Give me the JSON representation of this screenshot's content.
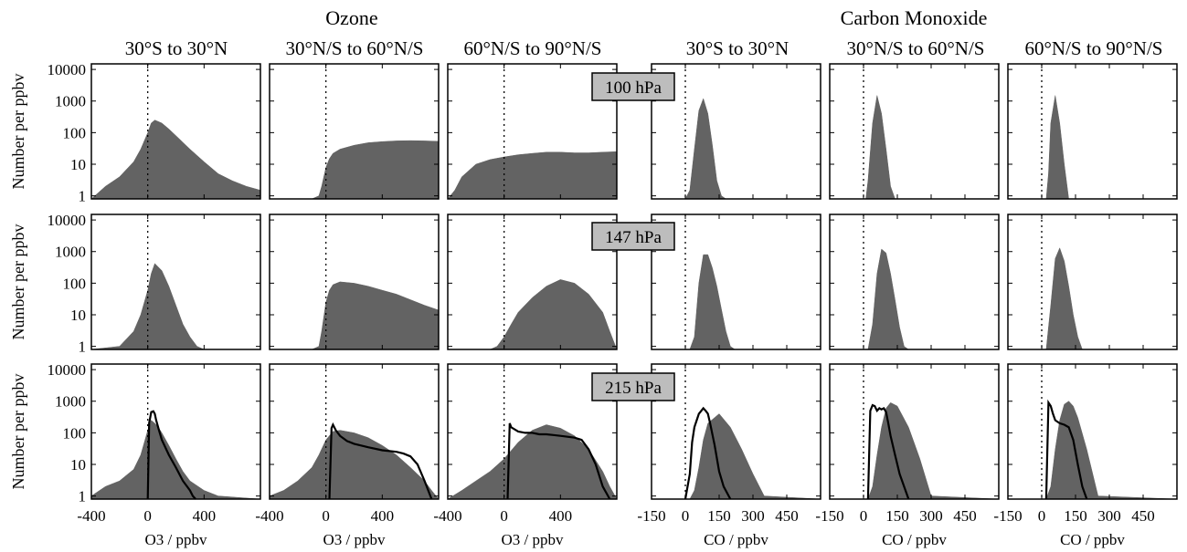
{
  "groups": [
    {
      "title": "Ozone",
      "columns": [
        "30°S to 30°N",
        "30°N/S to 60°N/S",
        "60°N/S to 90°N/S"
      ],
      "xlabel": "O3 / ppbv"
    },
    {
      "title": "Carbon Monoxide",
      "columns": [
        "30°S to 30°N",
        "30°N/S to 60°N/S",
        "60°N/S to 90°N/S"
      ],
      "xlabel": "CO / ppbv"
    }
  ],
  "pressure_levels": [
    "100 hPa",
    "147 hPa",
    "215 hPa"
  ],
  "ylabel": "Number per ppbv",
  "colors": {
    "histogram_fill": "#636363",
    "reference_line": "#000000",
    "zero_line": "#000000"
  },
  "chart_data": {
    "type": "area",
    "title": "",
    "yscale": "log",
    "ylim": [
      0.8,
      15000
    ],
    "yticks": [
      1,
      10,
      100,
      1000,
      10000
    ],
    "ytick_labels": [
      "1",
      "10",
      "100",
      "1000",
      "10000"
    ],
    "grid": false,
    "panels": [
      {
        "species": "Ozone",
        "region": "30°S to 30°N",
        "level": "100 hPa",
        "xlim": [
          -400,
          800
        ],
        "x": [
          -400,
          -300,
          -200,
          -100,
          -50,
          0,
          25,
          50,
          100,
          150,
          200,
          300,
          400,
          500,
          600,
          700,
          800
        ],
        "values": [
          0.8,
          2,
          4,
          12,
          30,
          100,
          200,
          250,
          200,
          130,
          80,
          30,
          12,
          5,
          3,
          2,
          1.5
        ]
      },
      {
        "species": "Ozone",
        "region": "30°S to 30°N",
        "level": "147 hPa",
        "xlim": [
          -400,
          800
        ],
        "x": [
          -400,
          -200,
          -100,
          -50,
          0,
          25,
          50,
          100,
          150,
          200,
          250,
          300,
          350,
          400,
          500,
          800
        ],
        "values": [
          0.8,
          1,
          3,
          10,
          60,
          200,
          420,
          250,
          80,
          20,
          5,
          2,
          1,
          0.8,
          0.8,
          0.8
        ]
      },
      {
        "species": "Ozone",
        "region": "30°S to 30°N",
        "level": "215 hPa",
        "xlim": [
          -400,
          800
        ],
        "x": [
          -400,
          -300,
          -200,
          -100,
          -50,
          0,
          25,
          50,
          75,
          100,
          150,
          200,
          250,
          300,
          400,
          500,
          800
        ],
        "values": [
          1,
          2,
          3,
          7,
          20,
          120,
          250,
          200,
          150,
          100,
          40,
          15,
          6,
          3,
          1.5,
          1,
          0.8
        ]
      },
      {
        "species": "Ozone",
        "region": "30°N/S to 60°N/S",
        "level": "100 hPa",
        "xlim": [
          -400,
          800
        ],
        "x": [
          -400,
          -100,
          -50,
          -30,
          0,
          25,
          50,
          100,
          200,
          300,
          400,
          500,
          600,
          700,
          800
        ],
        "values": [
          0.8,
          0.8,
          1,
          2,
          8,
          15,
          22,
          30,
          40,
          48,
          52,
          55,
          56,
          55,
          53
        ]
      },
      {
        "species": "Ozone",
        "region": "30°N/S to 60°N/S",
        "level": "147 hPa",
        "xlim": [
          -400,
          800
        ],
        "x": [
          -400,
          -100,
          -50,
          -30,
          0,
          25,
          50,
          100,
          200,
          300,
          400,
          500,
          600,
          700,
          800
        ],
        "values": [
          0.8,
          0.8,
          1,
          3,
          25,
          60,
          90,
          110,
          100,
          80,
          60,
          45,
          30,
          20,
          14
        ]
      },
      {
        "species": "Ozone",
        "region": "30°N/S to 60°N/S",
        "level": "215 hPa",
        "xlim": [
          -400,
          800
        ],
        "x": [
          -400,
          -300,
          -200,
          -100,
          -50,
          0,
          50,
          100,
          200,
          300,
          400,
          500,
          600,
          700,
          750,
          800
        ],
        "values": [
          1,
          1.5,
          3,
          8,
          20,
          60,
          110,
          120,
          100,
          70,
          40,
          20,
          8,
          3,
          1.5,
          0.8
        ]
      },
      {
        "species": "Ozone",
        "region": "60°N/S to 90°N/S",
        "level": "100 hPa",
        "xlim": [
          -400,
          800
        ],
        "x": [
          -400,
          -350,
          -300,
          -200,
          -100,
          0,
          100,
          200,
          300,
          400,
          500,
          600,
          700,
          800
        ],
        "values": [
          0.8,
          1.5,
          4,
          10,
          14,
          17,
          20,
          22,
          24,
          24,
          23,
          23,
          24,
          25
        ]
      },
      {
        "species": "Ozone",
        "region": "60°N/S to 90°N/S",
        "level": "147 hPa",
        "xlim": [
          -400,
          800
        ],
        "x": [
          -400,
          -100,
          -50,
          0,
          50,
          100,
          200,
          300,
          400,
          500,
          600,
          700,
          750,
          800
        ],
        "values": [
          0.8,
          0.8,
          1,
          2,
          5,
          12,
          35,
          80,
          130,
          100,
          45,
          12,
          3,
          0.8
        ]
      },
      {
        "species": "Ozone",
        "region": "60°N/S to 90°N/S",
        "level": "215 hPa",
        "xlim": [
          -400,
          800
        ],
        "x": [
          -400,
          -300,
          -200,
          -100,
          0,
          100,
          200,
          300,
          400,
          500,
          600,
          700,
          750,
          800
        ],
        "values": [
          0.8,
          1.5,
          3,
          6,
          15,
          50,
          120,
          180,
          140,
          80,
          30,
          6,
          2,
          0.8
        ]
      },
      {
        "species": "Carbon Monoxide",
        "region": "30°S to 30°N",
        "level": "100 hPa",
        "xlim": [
          -150,
          600
        ],
        "x": [
          -150,
          0,
          20,
          40,
          60,
          80,
          100,
          120,
          140,
          160,
          180,
          600
        ],
        "values": [
          0.8,
          0.8,
          1.5,
          30,
          500,
          1200,
          400,
          40,
          3,
          1,
          0.8,
          0.8
        ]
      },
      {
        "species": "Carbon Monoxide",
        "region": "30°S to 30°N",
        "level": "147 hPa",
        "xlim": [
          -150,
          600
        ],
        "x": [
          -150,
          20,
          40,
          60,
          80,
          100,
          120,
          140,
          160,
          180,
          200,
          220,
          600
        ],
        "values": [
          0.8,
          0.8,
          2,
          100,
          800,
          800,
          300,
          80,
          15,
          3,
          1,
          0.8,
          0.8
        ]
      },
      {
        "species": "Carbon Monoxide",
        "region": "30°S to 30°N",
        "level": "215 hPa",
        "xlim": [
          -150,
          600
        ],
        "x": [
          -150,
          20,
          40,
          60,
          80,
          100,
          150,
          200,
          250,
          300,
          350,
          600
        ],
        "values": [
          0.8,
          0.8,
          1.5,
          8,
          60,
          200,
          400,
          150,
          30,
          5,
          1,
          0.8
        ]
      },
      {
        "species": "Carbon Monoxide",
        "region": "30°N/S to 60°N/S",
        "level": "100 hPa",
        "xlim": [
          -150,
          600
        ],
        "x": [
          -150,
          10,
          20,
          40,
          60,
          80,
          100,
          120,
          140,
          600
        ],
        "values": [
          0.8,
          0.8,
          3,
          200,
          1500,
          400,
          30,
          2,
          0.8,
          0.8
        ]
      },
      {
        "species": "Carbon Monoxide",
        "region": "30°N/S to 60°N/S",
        "level": "147 hPa",
        "xlim": [
          -150,
          600
        ],
        "x": [
          -150,
          20,
          40,
          60,
          80,
          100,
          120,
          140,
          160,
          180,
          200,
          600
        ],
        "values": [
          0.8,
          0.8,
          5,
          200,
          1200,
          900,
          200,
          30,
          4,
          1,
          0.8,
          0.8
        ]
      },
      {
        "species": "Carbon Monoxide",
        "region": "30°N/S to 60°N/S",
        "level": "215 hPa",
        "xlim": [
          -150,
          600
        ],
        "x": [
          -150,
          20,
          40,
          60,
          80,
          100,
          120,
          150,
          200,
          250,
          300,
          600
        ],
        "values": [
          0.8,
          0.8,
          2,
          20,
          150,
          600,
          900,
          700,
          150,
          15,
          1,
          0.8
        ]
      },
      {
        "species": "Carbon Monoxide",
        "region": "60°N/S to 90°N/S",
        "level": "100 hPa",
        "xlim": [
          -150,
          600
        ],
        "x": [
          -150,
          20,
          30,
          40,
          60,
          80,
          100,
          120,
          600
        ],
        "values": [
          0.8,
          0.8,
          5,
          200,
          1500,
          200,
          10,
          0.8,
          0.8
        ]
      },
      {
        "species": "Carbon Monoxide",
        "region": "60°N/S to 90°N/S",
        "level": "147 hPa",
        "xlim": [
          -150,
          600
        ],
        "x": [
          -150,
          20,
          40,
          60,
          80,
          100,
          120,
          140,
          160,
          180,
          600
        ],
        "values": [
          0.8,
          0.8,
          20,
          600,
          1300,
          500,
          80,
          10,
          2,
          0.8,
          0.8
        ]
      },
      {
        "species": "Carbon Monoxide",
        "region": "60°N/S to 90°N/S",
        "level": "215 hPa",
        "xlim": [
          -150,
          600
        ],
        "x": [
          -150,
          20,
          40,
          60,
          80,
          100,
          120,
          140,
          160,
          200,
          250,
          600
        ],
        "values": [
          0.8,
          0.8,
          2,
          30,
          250,
          800,
          1000,
          700,
          300,
          30,
          1,
          0.8
        ]
      }
    ],
    "reference_lines": [
      {
        "species": "Ozone",
        "region": "30°S to 30°N",
        "level": "215 hPa",
        "x": [
          0,
          10,
          25,
          40,
          50,
          60,
          80,
          100,
          150,
          200,
          250,
          300,
          320,
          340
        ],
        "values": [
          0.8,
          200,
          450,
          480,
          400,
          250,
          120,
          60,
          20,
          8,
          3,
          1.5,
          1,
          0.8
        ]
      },
      {
        "species": "Ozone",
        "region": "30°N/S to 60°N/S",
        "level": "215 hPa",
        "x": [
          25,
          40,
          50,
          70,
          100,
          150,
          200,
          300,
          400,
          500,
          550,
          600,
          650,
          700,
          750
        ],
        "values": [
          0.8,
          140,
          180,
          120,
          80,
          55,
          45,
          35,
          28,
          25,
          22,
          18,
          10,
          3,
          0.8
        ]
      },
      {
        "species": "Ozone",
        "region": "60°N/S to 90°N/S",
        "level": "215 hPa",
        "x": [
          25,
          40,
          50,
          100,
          150,
          200,
          250,
          300,
          350,
          400,
          500,
          550,
          600,
          650,
          700,
          750
        ],
        "values": [
          0.8,
          200,
          150,
          110,
          100,
          100,
          90,
          90,
          85,
          80,
          70,
          60,
          30,
          10,
          2,
          0.8
        ]
      },
      {
        "species": "Carbon Monoxide",
        "region": "30°S to 30°N",
        "level": "215 hPa",
        "x": [
          0,
          20,
          30,
          40,
          60,
          80,
          90,
          100,
          110,
          130,
          150,
          170,
          200
        ],
        "values": [
          0.8,
          5,
          50,
          150,
          400,
          600,
          500,
          400,
          200,
          40,
          6,
          2,
          0.8
        ]
      },
      {
        "species": "Carbon Monoxide",
        "region": "30°N/S to 60°N/S",
        "level": "215 hPa",
        "x": [
          20,
          30,
          40,
          50,
          60,
          70,
          80,
          90,
          100,
          110,
          120,
          140,
          160,
          180,
          200
        ],
        "values": [
          0.8,
          500,
          750,
          700,
          500,
          600,
          550,
          600,
          450,
          200,
          80,
          20,
          5,
          2,
          0.8
        ]
      },
      {
        "species": "Carbon Monoxide",
        "region": "60°N/S to 90°N/S",
        "level": "215 hPa",
        "x": [
          20,
          30,
          40,
          50,
          60,
          80,
          100,
          120,
          140,
          160,
          180,
          200
        ],
        "values": [
          0.8,
          900,
          700,
          400,
          250,
          200,
          180,
          150,
          60,
          10,
          2,
          0.8
        ]
      }
    ]
  }
}
